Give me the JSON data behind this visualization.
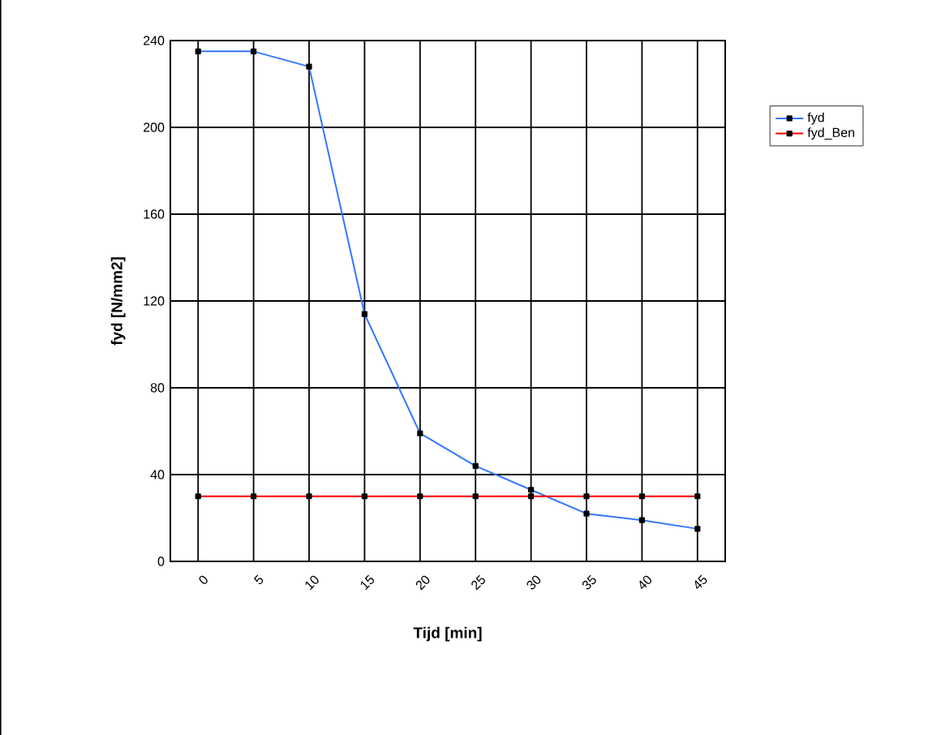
{
  "chart_data": {
    "type": "line",
    "xlabel": "Tijd [min]",
    "ylabel": "fyd [N/mm2]",
    "categories": [
      "0",
      "5",
      "10",
      "15",
      "20",
      "25",
      "30",
      "35",
      "40",
      "45"
    ],
    "series": [
      {
        "name": "fyd",
        "color": "#3377ff",
        "values": [
          235,
          235,
          228,
          114,
          59,
          44,
          33,
          22,
          19,
          15
        ]
      },
      {
        "name": "fyd_Ben",
        "color": "#ff0000",
        "values": [
          30,
          30,
          30,
          30,
          30,
          30,
          30,
          30,
          30,
          30
        ]
      }
    ],
    "ylim": [
      0,
      240
    ],
    "yticks": [
      0,
      40,
      80,
      120,
      160,
      200,
      240
    ],
    "grid": true,
    "legend": "top right",
    "marker": "square",
    "line_style": "solid"
  }
}
